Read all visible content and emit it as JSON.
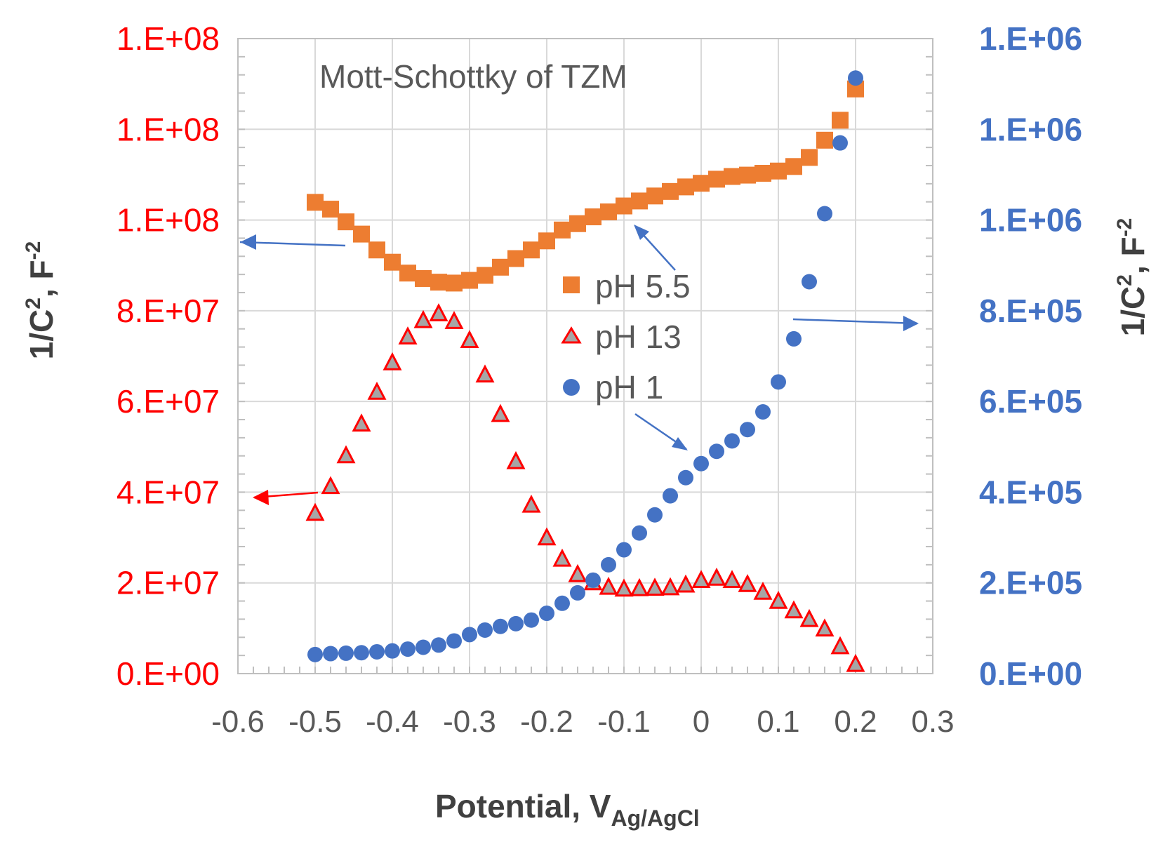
{
  "chart_data": {
    "type": "scatter",
    "title": "Mott-Schottky of TZM",
    "xlabel": {
      "main": "Potential, V",
      "subscript": "Ag/AgCl"
    },
    "ylabel_left": {
      "main": "1/C",
      "sup1": "2",
      "mid": ", F",
      "sup2": "-2"
    },
    "ylabel_right": {
      "main": "1/C",
      "sup1": "2",
      "mid": ", F",
      "sup2": "-2"
    },
    "xlim": [
      -0.6,
      0.3
    ],
    "x_ticks": [
      "-0.6",
      "-0.5",
      "-0.4",
      "-0.3",
      "-0.2",
      "-0.1",
      "0",
      "0.1",
      "0.2",
      "0.3"
    ],
    "ylim_left": [
      0,
      140000000
    ],
    "y_ticks_left": [
      "0.E+00",
      "2.E+07",
      "4.E+07",
      "6.E+07",
      "8.E+07",
      "1.E+08",
      "1.E+08",
      "1.E+08"
    ],
    "ylim_right": [
      0,
      1400000
    ],
    "y_ticks_right": [
      "0.E+00",
      "2.E+05",
      "4.E+05",
      "6.E+05",
      "8.E+05",
      "1.E+06",
      "1.E+06",
      "1.E+06"
    ],
    "colors": {
      "left_axis": "#ff0000",
      "right_axis": "#4472c4",
      "ph55": "#ed7d31",
      "ph13": "#ff0000",
      "ph1": "#4472c4",
      "arrow": "#4472c4"
    },
    "series": [
      {
        "name": "pH 5.5",
        "axis": "left",
        "marker": "square",
        "x": [
          -0.5,
          -0.48,
          -0.46,
          -0.44,
          -0.42,
          -0.4,
          -0.38,
          -0.36,
          -0.34,
          -0.32,
          -0.3,
          -0.28,
          -0.26,
          -0.24,
          -0.22,
          -0.2,
          -0.18,
          -0.16,
          -0.14,
          -0.12,
          -0.1,
          -0.08,
          -0.06,
          -0.04,
          -0.02,
          0,
          0.02,
          0.04,
          0.06,
          0.08,
          0.1,
          0.12,
          0.14,
          0.16,
          0.18,
          0.2
        ],
        "y": [
          103900000,
          102400000,
          99600000,
          96900000,
          93400000,
          90700000,
          88300000,
          87100000,
          86300000,
          86100000,
          86700000,
          87800000,
          89600000,
          91500000,
          93400000,
          95400000,
          97800000,
          99200000,
          100700000,
          101800000,
          103100000,
          104200000,
          105300000,
          106300000,
          107300000,
          108100000,
          109000000,
          109600000,
          109900000,
          110300000,
          110800000,
          111800000,
          113800000,
          117600000,
          122000000,
          128900000
        ]
      },
      {
        "name": "pH 13",
        "axis": "left",
        "marker": "triangle",
        "x": [
          -0.5,
          -0.48,
          -0.46,
          -0.44,
          -0.42,
          -0.4,
          -0.38,
          -0.36,
          -0.34,
          -0.32,
          -0.3,
          -0.28,
          -0.26,
          -0.24,
          -0.22,
          -0.2,
          -0.18,
          -0.16,
          -0.14,
          -0.12,
          -0.1,
          -0.08,
          -0.06,
          -0.04,
          -0.02,
          0,
          0.02,
          0.04,
          0.06,
          0.08,
          0.1,
          0.12,
          0.14,
          0.16,
          0.18,
          0.2
        ],
        "y": [
          35300000,
          41200000,
          48000000,
          55000000,
          62000000,
          68500000,
          74200000,
          77800000,
          79300000,
          77600000,
          73400000,
          65800000,
          57100000,
          46700000,
          37100000,
          29900000,
          25200000,
          21800000,
          20000000,
          19000000,
          18600000,
          18700000,
          18800000,
          18900000,
          19500000,
          20500000,
          21000000,
          20500000,
          19600000,
          17900000,
          15900000,
          13800000,
          11900000,
          9800000,
          5900000,
          2000000
        ]
      },
      {
        "name": "pH 1",
        "axis": "right",
        "marker": "circle",
        "x": [
          -0.5,
          -0.48,
          -0.46,
          -0.44,
          -0.42,
          -0.4,
          -0.38,
          -0.36,
          -0.34,
          -0.32,
          -0.3,
          -0.28,
          -0.26,
          -0.24,
          -0.22,
          -0.2,
          -0.18,
          -0.16,
          -0.14,
          -0.12,
          -0.1,
          -0.08,
          -0.06,
          -0.04,
          -0.02,
          0,
          0.02,
          0.04,
          0.06,
          0.08,
          0.1,
          0.12,
          0.14,
          0.16,
          0.18,
          0.2
        ],
        "y": [
          42000,
          44000,
          45000,
          46000,
          48000,
          50000,
          54000,
          58000,
          63000,
          72000,
          86000,
          96000,
          104000,
          110000,
          118000,
          133000,
          155000,
          178000,
          206000,
          240000,
          273000,
          310000,
          350000,
          392000,
          432000,
          463000,
          490000,
          513000,
          538000,
          577000,
          643000,
          738000,
          864000,
          1014000,
          1170000,
          1313000
        ]
      }
    ],
    "legend": [
      "pH 5.5",
      "pH 13",
      "pH 1"
    ]
  }
}
